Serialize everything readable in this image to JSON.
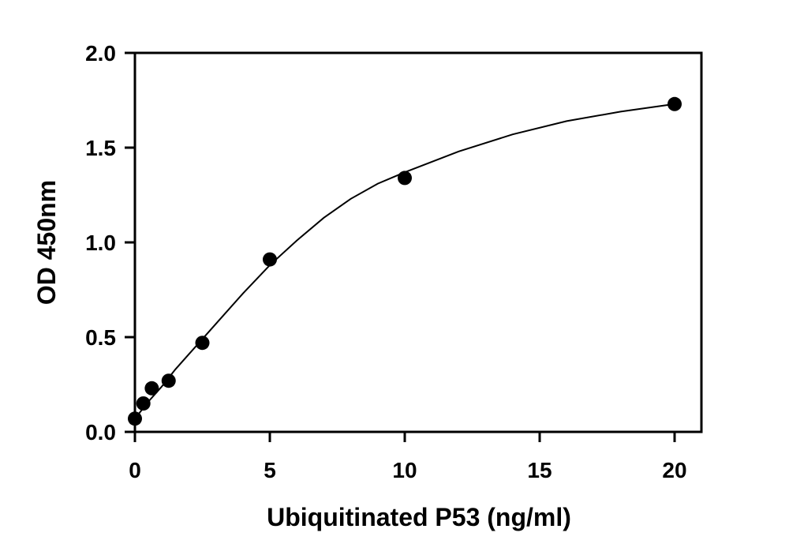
{
  "chart_data": {
    "type": "scatter",
    "title": "",
    "xlabel": "Ubiquitinated P53 (ng/ml)",
    "ylabel": "OD 450nm",
    "xlim": [
      0,
      21
    ],
    "ylim": [
      0,
      2.0
    ],
    "x_ticks": [
      0,
      5,
      10,
      15,
      20
    ],
    "x_tick_labels": [
      "0",
      "5",
      "10",
      "15",
      "20"
    ],
    "y_ticks": [
      0,
      0.5,
      1.0,
      1.5,
      2.0
    ],
    "y_tick_labels": [
      "0.0",
      "0.5",
      "1.0",
      "1.5",
      "2.0"
    ],
    "grid": false,
    "legend": "none",
    "colors": {
      "points": "#000000",
      "curve": "#000000",
      "axes": "#000000"
    },
    "series": [
      {
        "x": [
          0,
          0.3125,
          0.625,
          1.25,
          2.5,
          5,
          10,
          20
        ],
        "y": [
          0.07,
          0.15,
          0.23,
          0.27,
          0.47,
          0.91,
          1.34,
          1.73
        ]
      }
    ],
    "fit_curve": {
      "x": [
        0,
        0.5,
        1,
        1.5,
        2,
        2.5,
        3,
        4,
        5,
        6,
        7,
        8,
        9,
        10,
        12,
        14,
        16,
        18,
        20
      ],
      "y": [
        0.07,
        0.16,
        0.24,
        0.33,
        0.41,
        0.49,
        0.57,
        0.73,
        0.88,
        1.01,
        1.13,
        1.23,
        1.31,
        1.37,
        1.48,
        1.57,
        1.64,
        1.69,
        1.73
      ]
    }
  }
}
